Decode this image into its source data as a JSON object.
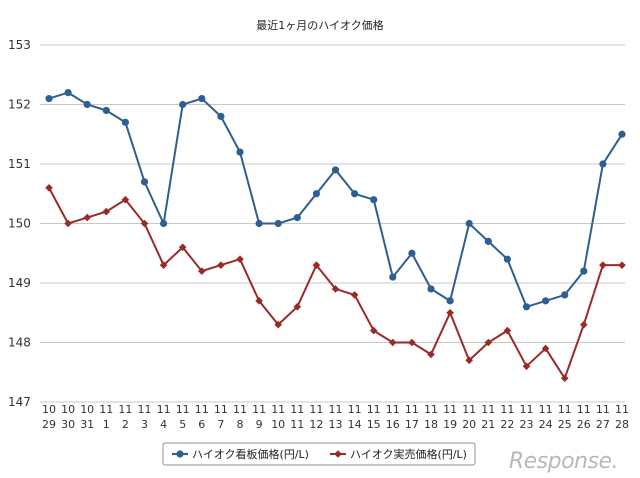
{
  "chart_data": {
    "type": "line",
    "title": "最近1ヶ月のハイオク価格",
    "categories": [
      [
        "10",
        "29"
      ],
      [
        "10",
        "30"
      ],
      [
        "10",
        "31"
      ],
      [
        "11",
        "1"
      ],
      [
        "11",
        "2"
      ],
      [
        "11",
        "3"
      ],
      [
        "11",
        "4"
      ],
      [
        "11",
        "5"
      ],
      [
        "11",
        "6"
      ],
      [
        "11",
        "7"
      ],
      [
        "11",
        "8"
      ],
      [
        "11",
        "9"
      ],
      [
        "11",
        "10"
      ],
      [
        "11",
        "11"
      ],
      [
        "11",
        "12"
      ],
      [
        "11",
        "13"
      ],
      [
        "11",
        "14"
      ],
      [
        "11",
        "15"
      ],
      [
        "11",
        "16"
      ],
      [
        "11",
        "17"
      ],
      [
        "11",
        "18"
      ],
      [
        "11",
        "19"
      ],
      [
        "11",
        "20"
      ],
      [
        "11",
        "21"
      ],
      [
        "11",
        "22"
      ],
      [
        "11",
        "23"
      ],
      [
        "11",
        "24"
      ],
      [
        "11",
        "25"
      ],
      [
        "11",
        "26"
      ],
      [
        "11",
        "27"
      ],
      [
        "11",
        "28"
      ]
    ],
    "ylim": [
      147,
      153
    ],
    "yticks": [
      "147",
      "148",
      "149",
      "150",
      "151",
      "152",
      "153"
    ],
    "grid": true,
    "legend_position": "bottom-center",
    "series": [
      {
        "name": "ハイオク看板価格(円/L)",
        "color": "#2e5e92",
        "marker": "circle",
        "values": [
          152.1,
          152.2,
          152.0,
          151.9,
          151.7,
          150.7,
          150.0,
          152.0,
          152.1,
          151.8,
          151.2,
          150.0,
          150.0,
          150.1,
          150.5,
          150.9,
          150.5,
          150.4,
          149.1,
          149.5,
          148.9,
          148.7,
          150.0,
          149.7,
          149.4,
          148.6,
          148.7,
          148.8,
          149.2,
          151.0,
          151.5
        ]
      },
      {
        "name": "ハイオク実売価格(円/L)",
        "color": "#9a2a28",
        "marker": "diamond",
        "values": [
          150.6,
          150.0,
          150.1,
          150.2,
          150.4,
          150.0,
          149.3,
          149.6,
          149.2,
          149.3,
          149.4,
          148.7,
          148.3,
          148.6,
          149.3,
          148.9,
          148.8,
          148.2,
          148.0,
          148.0,
          147.8,
          148.5,
          147.7,
          148.0,
          148.2,
          147.6,
          147.9,
          147.4,
          148.3,
          149.3,
          149.3
        ]
      }
    ]
  },
  "watermark": "Response."
}
